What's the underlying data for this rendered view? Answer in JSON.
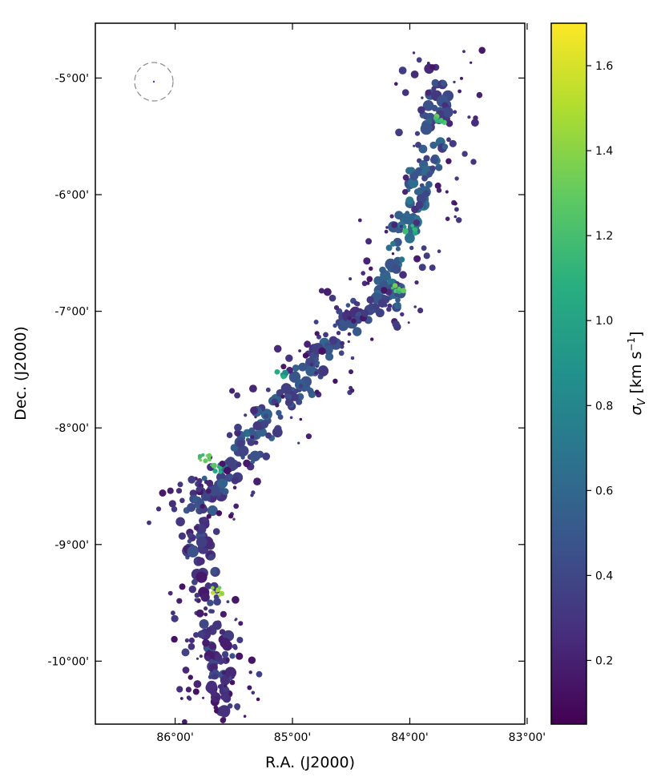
{
  "chart_data": {
    "type": "heatmap",
    "xlabel": "R.A. (J2000)",
    "ylabel": "Dec. (J2000)",
    "x_ticks": [
      {
        "label": "86°00'",
        "value": 86.0
      },
      {
        "label": "85°00'",
        "value": 85.0
      },
      {
        "label": "84°00'",
        "value": 84.0
      },
      {
        "label": "83°00'",
        "value": 83.0
      }
    ],
    "y_ticks": [
      {
        "label": "-5°00'",
        "value": -5.0
      },
      {
        "label": "-6°00'",
        "value": -6.0
      },
      {
        "label": "-7°00'",
        "value": -7.0
      },
      {
        "label": "-8°00'",
        "value": -8.0
      },
      {
        "label": "-9°00'",
        "value": -9.0
      },
      {
        "label": "-10°00'",
        "value": -10.0
      }
    ],
    "xlim": [
      86.68,
      83.02
    ],
    "ylim": [
      -10.54,
      -4.53
    ],
    "x_reversed": true,
    "colorbar": {
      "label": "σ_V [km s⁻¹]",
      "colormap": "viridis",
      "range": [
        0.05,
        1.7
      ],
      "ticks": [
        0.2,
        0.4,
        0.6,
        0.8,
        1.0,
        1.2,
        1.4,
        1.6
      ],
      "tick_labels": [
        "0.2",
        "0.4",
        "0.6",
        "0.8",
        "1.0",
        "1.2",
        "1.4",
        "1.6"
      ]
    },
    "beam": {
      "ra": 86.21,
      "dec": -5.05
    },
    "filament_spine": [
      {
        "ra": 83.75,
        "dec": -4.95,
        "sigma": 0.35
      },
      {
        "ra": 83.8,
        "dec": -5.5,
        "sigma": 0.45
      },
      {
        "ra": 83.95,
        "dec": -6.05,
        "sigma": 0.55
      },
      {
        "ra": 84.1,
        "dec": -6.45,
        "sigma": 0.6
      },
      {
        "ra": 84.2,
        "dec": -6.9,
        "sigma": 0.5
      },
      {
        "ra": 84.45,
        "dec": -7.0,
        "sigma": 0.4
      },
      {
        "ra": 84.85,
        "dec": -7.5,
        "sigma": 0.45
      },
      {
        "ra": 85.15,
        "dec": -7.9,
        "sigma": 0.45
      },
      {
        "ra": 85.45,
        "dec": -8.25,
        "sigma": 0.55
      },
      {
        "ra": 85.7,
        "dec": -8.55,
        "sigma": 0.4
      },
      {
        "ra": 85.85,
        "dec": -8.75,
        "sigma": 0.35
      },
      {
        "ra": 85.7,
        "dec": -9.6,
        "sigma": 0.3
      },
      {
        "ra": 85.6,
        "dec": -10.1,
        "sigma": 0.3
      },
      {
        "ra": 85.65,
        "dec": -10.45,
        "sigma": 0.25
      }
    ],
    "high_dispersion_spots": [
      {
        "ra": 83.75,
        "dec": -5.35,
        "sigma": 1.4
      },
      {
        "ra": 84.0,
        "dec": -6.3,
        "sigma": 1.2
      },
      {
        "ra": 84.1,
        "dec": -6.8,
        "sigma": 1.35
      },
      {
        "ra": 85.1,
        "dec": -7.55,
        "sigma": 1.1
      },
      {
        "ra": 85.75,
        "dec": -8.25,
        "sigma": 1.45
      },
      {
        "ra": 85.65,
        "dec": -8.35,
        "sigma": 1.3
      },
      {
        "ra": 85.65,
        "dec": -9.4,
        "sigma": 1.6
      }
    ]
  }
}
